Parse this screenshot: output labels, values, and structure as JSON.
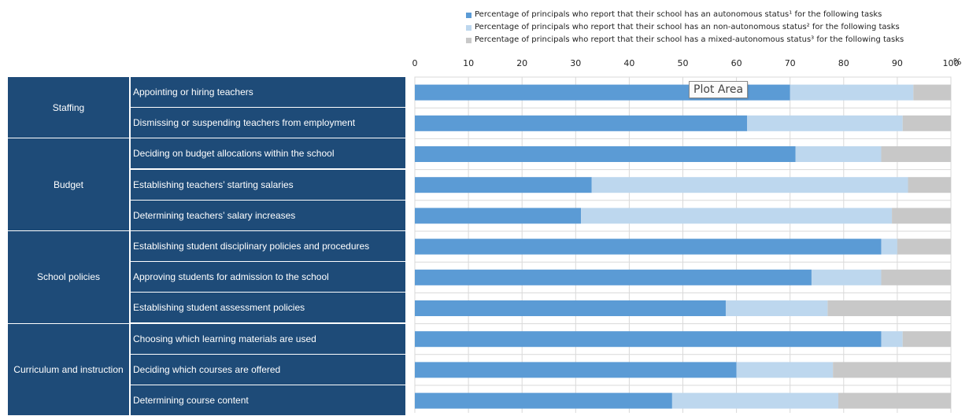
{
  "chart_data": {
    "type": "bar",
    "orientation": "horizontal",
    "stacked": true,
    "x_tick_labels": [
      "0",
      "10",
      "20",
      "30",
      "40",
      "50",
      "60",
      "70",
      "80",
      "90",
      "100"
    ],
    "x_unit_label": "%",
    "xlim": [
      0,
      100
    ],
    "grid": true,
    "legend_position": "top",
    "legend": [
      "Percentage of principals who report that their school has an autonomous status¹ for the following tasks",
      "Percentage of principals who report that their school has an non-autonomous status² for the following tasks",
      "Percentage of principals who report that their school has a mixed-autonomous status³ for the following tasks"
    ],
    "colors": [
      "#5b9bd5",
      "#bdd7ee",
      "#c8c8c8"
    ],
    "groups": [
      {
        "label": "Staffing",
        "tasks": [
          0,
          1
        ]
      },
      {
        "label": "Budget",
        "tasks": [
          2,
          3,
          4
        ]
      },
      {
        "label": "School policies",
        "tasks": [
          5,
          6,
          7
        ]
      },
      {
        "label": "Curriculum and instruction",
        "tasks": [
          8,
          9,
          10
        ]
      }
    ],
    "categories": [
      "Appointing or hiring teachers",
      "Dismissing or suspending teachers from employment",
      "Deciding on budget allocations within the school",
      "Establishing teachers’ starting salaries",
      "Determining teachers’ salary increases",
      "Establishing student disciplinary policies and procedures",
      "Approving students for admission to the school",
      "Establishing student assessment policies",
      "Choosing which learning materials are used",
      "Deciding which courses are offered",
      "Determining course content"
    ],
    "series": [
      {
        "name": "autonomous",
        "values": [
          70,
          62,
          71,
          33,
          31,
          87,
          74,
          58,
          87,
          60,
          48
        ]
      },
      {
        "name": "non-autonomous",
        "values": [
          23,
          29,
          16,
          59,
          58,
          3,
          13,
          19,
          4,
          18,
          31
        ]
      },
      {
        "name": "mixed-autonomous",
        "values": [
          7,
          9,
          13,
          8,
          11,
          10,
          13,
          23,
          9,
          22,
          21
        ]
      }
    ]
  },
  "tooltip": {
    "text": "Plot Area"
  }
}
